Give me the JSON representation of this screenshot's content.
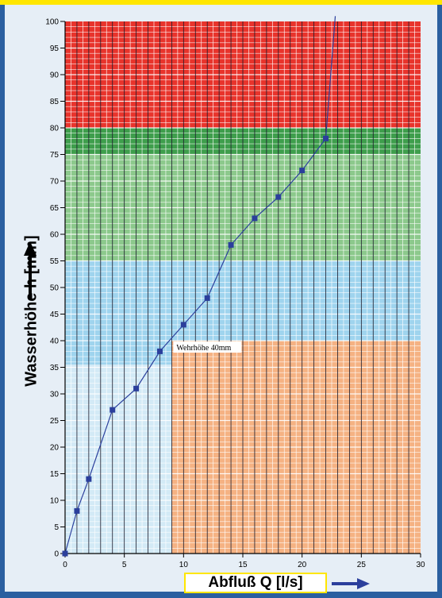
{
  "chart_data": {
    "type": "line",
    "xlabel": "Abfluß Q [l/s]",
    "ylabel": "Wasserhöhe h [mm]",
    "xlim": [
      0,
      30
    ],
    "ylim": [
      0,
      100
    ],
    "x_ticks": [
      0,
      5,
      10,
      15,
      20,
      25,
      30
    ],
    "y_ticks": [
      0,
      5,
      10,
      15,
      20,
      25,
      30,
      35,
      40,
      45,
      50,
      55,
      60,
      65,
      70,
      75,
      80,
      85,
      90,
      95,
      100
    ],
    "grid": true,
    "series": [
      {
        "points": [
          [
            0,
            0
          ],
          [
            1,
            8
          ],
          [
            2,
            14
          ],
          [
            4,
            27
          ],
          [
            6,
            31
          ],
          [
            8,
            38
          ],
          [
            10,
            43
          ],
          [
            12,
            48
          ],
          [
            14,
            58
          ],
          [
            16,
            63
          ],
          [
            18,
            67
          ],
          [
            20,
            72
          ],
          [
            22,
            78
          ],
          [
            22.8,
            101
          ]
        ],
        "color": "#2b3f9c"
      }
    ],
    "zones": [
      {
        "x": [
          0,
          30
        ],
        "y": [
          80,
          100
        ],
        "color": "#e8342c"
      },
      {
        "x": [
          0,
          30
        ],
        "y": [
          55,
          80
        ],
        "color": "#8cc98c"
      },
      {
        "x": [
          0,
          30
        ],
        "y": [
          75,
          80
        ],
        "color": "#3e9e4c"
      },
      {
        "x": [
          0,
          30
        ],
        "y": [
          40,
          55
        ],
        "color": "#9fd4ee"
      },
      {
        "x": [
          0,
          9
        ],
        "y": [
          35.5,
          40
        ],
        "color": "#9fd4ee"
      },
      {
        "x": [
          0,
          9
        ],
        "y": [
          0,
          35.5
        ],
        "color": "#d3eaf6"
      },
      {
        "x": [
          9,
          30
        ],
        "y": [
          0,
          40
        ],
        "color": "#f5b283"
      }
    ],
    "annotations": [
      {
        "text": "Wehrhöhe 40mm",
        "x": 9,
        "y": 38.5
      }
    ]
  },
  "colors": {
    "frame": "#2b5fa0",
    "top_bar": "#ffe600",
    "arrow": "#2b3f9c"
  },
  "icons": [
    "up-arrow-icon",
    "right-arrow-icon"
  ]
}
